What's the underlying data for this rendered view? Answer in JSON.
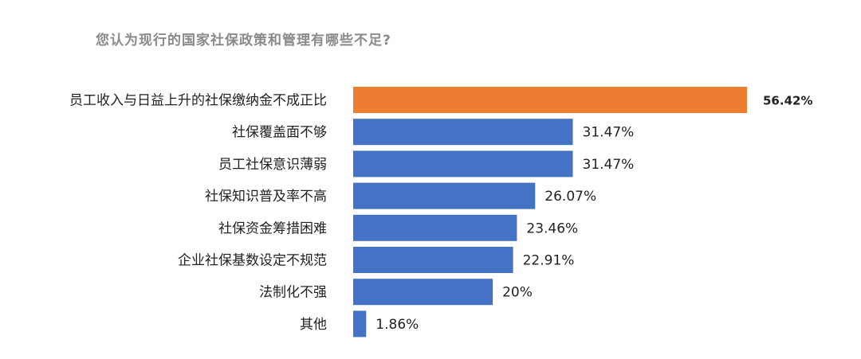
{
  "chart_data": {
    "type": "bar",
    "orientation": "horizontal",
    "title": "您认为现行的国家社保政策和管理有哪些不足?",
    "categories": [
      "员工收入与日益上升的社保缴纳金不成正比",
      "社保覆盖面不够",
      "员工社保意识薄弱",
      "社保知识普及率不高",
      "社保资金筹措困难",
      "企业社保基数设定不规范",
      "法制化不强",
      "其他"
    ],
    "values": [
      56.42,
      31.47,
      31.47,
      26.07,
      23.46,
      22.91,
      20,
      1.86
    ],
    "value_labels": [
      "56.42%",
      "31.47%",
      "31.47%",
      "26.07%",
      "23.46%",
      "22.91%",
      "20%",
      "1.86%"
    ],
    "xlim": [
      0,
      56.42
    ],
    "grid": false,
    "legend": "none",
    "colors": {
      "highlight": "#ED7D31",
      "default": "#4472C4"
    }
  }
}
